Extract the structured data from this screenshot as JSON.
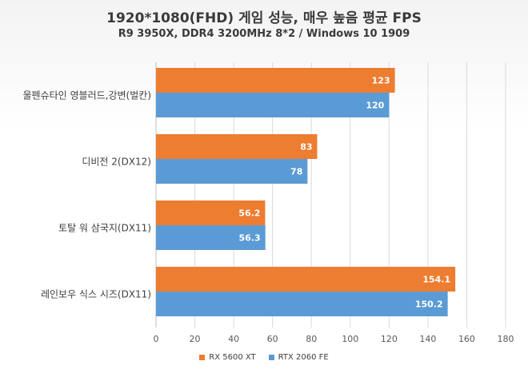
{
  "chart_data": {
    "type": "bar",
    "orientation": "horizontal",
    "title": "1920*1080(FHD) 게임 성능, 매우 높음 평균 FPS",
    "subtitle": "R9 3950X, DDR4 3200MHz 8*2 / Windows 10 1909",
    "xlabel": "",
    "ylabel": "",
    "categories": [
      "울펜슈타인 영블러드,강변(벌칸)",
      "디비전 2(DX12)",
      "토탈 워 삼국지(DX11)",
      "레인보우 식스 시즈(DX11)"
    ],
    "series": [
      {
        "name": "RX 5600 XT",
        "color": "#ed7d31",
        "values": [
          123,
          83,
          56.2,
          154.1
        ],
        "labels": [
          "123",
          "83",
          "56.2",
          "154.1"
        ]
      },
      {
        "name": "RTX 2060 FE",
        "color": "#5b9bd5",
        "values": [
          120,
          78,
          56.3,
          150.2
        ],
        "labels": [
          "120",
          "78",
          "56.3",
          "150.2"
        ]
      }
    ],
    "xlim": [
      0,
      180
    ],
    "xticks": [
      0,
      20,
      40,
      60,
      80,
      100,
      120,
      140,
      160,
      180
    ],
    "xtick_labels": [
      "0",
      "20",
      "40",
      "60",
      "80",
      "100",
      "120",
      "140",
      "160",
      "180"
    ],
    "grid": true,
    "legend_position": "bottom"
  }
}
